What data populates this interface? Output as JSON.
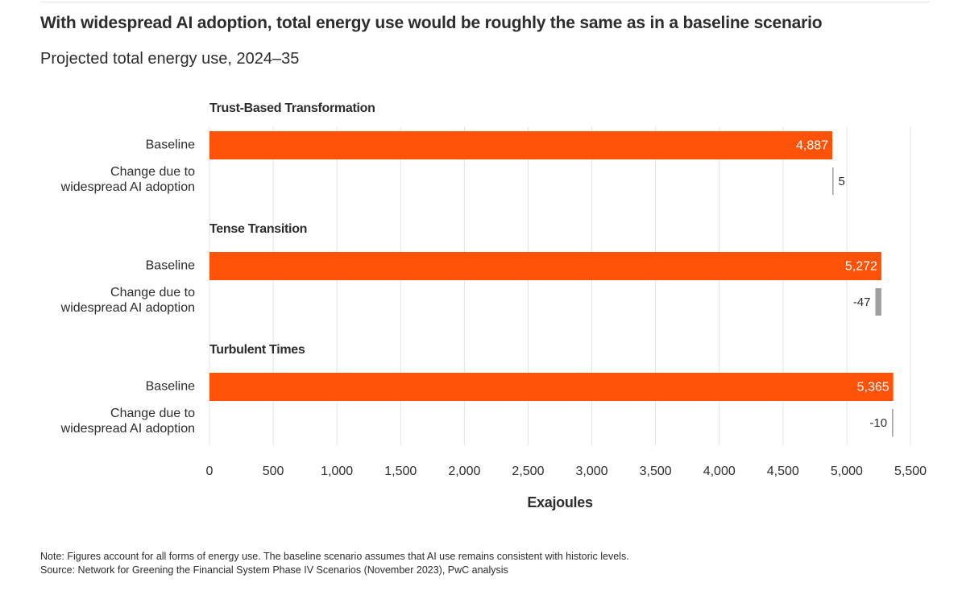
{
  "title": "With widespread AI adoption, total energy use would be roughly the same as in a baseline scenario",
  "subtitle": "Projected total energy use, 2024–35",
  "note": "Note: Figures account for all forms of energy use. The baseline scenario assumes that AI use remains consistent with historic levels.",
  "source": "Source: Network for Greening the Financial System Phase IV Scenarios (November 2023), PwC analysis",
  "colors": {
    "baseline": "#fe5208",
    "change": "#9f9f9f",
    "grid": "#e3e3e3",
    "text": "#2d2d2d"
  },
  "chart_data": {
    "type": "bar",
    "orientation": "horizontal",
    "xlabel": "Exajoules",
    "xlim": [
      0,
      5500
    ],
    "x_ticks": [
      0,
      500,
      1000,
      1500,
      2000,
      2500,
      3000,
      3500,
      4000,
      4500,
      5000,
      5500
    ],
    "x_tick_labels": [
      "0",
      "500",
      "1,000",
      "1,500",
      "2,000",
      "2,500",
      "3,000",
      "3,500",
      "4,000",
      "4,500",
      "5,000",
      "5,500"
    ],
    "grid": true,
    "row_labels": {
      "baseline": "Baseline",
      "change": [
        "Change due to",
        "widespread AI adoption"
      ]
    },
    "groups": [
      {
        "name": "Trust-Based Transformation",
        "baseline": 4887,
        "baseline_label": "4,887",
        "change": 5,
        "change_label": "5"
      },
      {
        "name": "Tense Transition",
        "baseline": 5272,
        "baseline_label": "5,272",
        "change": -47,
        "change_label": "-47"
      },
      {
        "name": "Turbulent Times",
        "baseline": 5365,
        "baseline_label": "5,365",
        "change": -10,
        "change_label": "-10"
      }
    ]
  }
}
